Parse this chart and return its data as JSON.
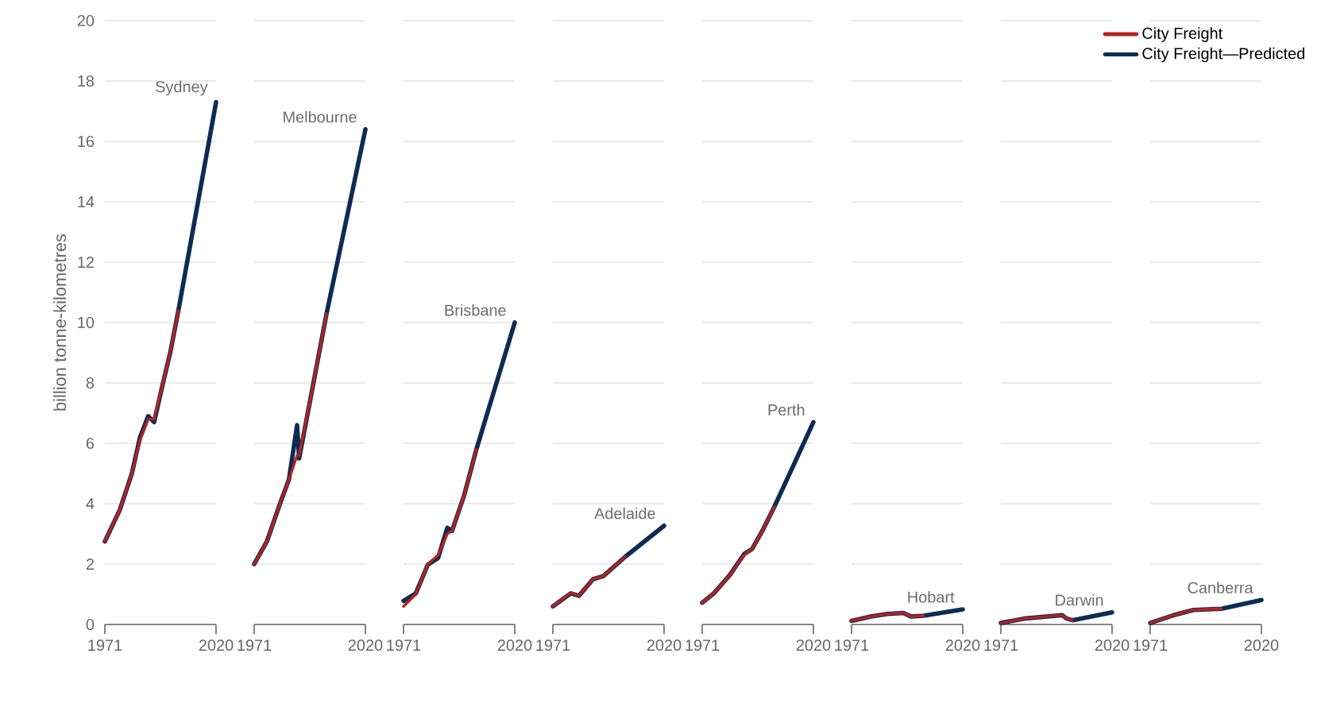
{
  "chart_data": [
    {
      "type": "line",
      "ylabel": "billion tonne-kilometres",
      "annotations": [
        "Sydney"
      ],
      "x": [
        1971,
        1977.6,
        1982.9,
        1986.5,
        1990.1,
        1992.7,
        1996.3,
        1999.8,
        2003.4,
        2020
      ],
      "series": [
        {
          "color": "#b5231e",
          "values": [
            2.75,
            3.8,
            5.0,
            6.1,
            6.8,
            6.8,
            7.9,
            9.0,
            10.4,
            null
          ]
        },
        {
          "color": "#0d2c54",
          "values": [
            2.75,
            3.8,
            5.0,
            6.2,
            6.9,
            6.7,
            7.9,
            9.0,
            10.4,
            17.3
          ]
        }
      ],
      "xlim": [
        1971,
        2020
      ],
      "xticks": [
        1971,
        2020
      ],
      "ylim": [
        0,
        20
      ],
      "yticks": [
        0,
        2,
        4,
        6,
        8,
        10,
        12,
        14,
        16,
        18,
        20
      ],
      "grid": "y",
      "line_style": "solid",
      "marker": "none"
    },
    {
      "type": "line",
      "annotations": [
        "Melbourne"
      ],
      "x": [
        1971,
        1976.6,
        1981.9,
        1986.3,
        1989.9,
        1990.8,
        1996.1,
        2002.9,
        2020
      ],
      "series": [
        {
          "color": "#b5231e",
          "values": [
            2.0,
            2.75,
            3.9,
            4.8,
            5.6,
            5.6,
            7.6,
            10.3,
            null
          ]
        },
        {
          "color": "#0d2c54",
          "values": [
            2.0,
            2.75,
            3.9,
            4.8,
            6.6,
            5.5,
            7.6,
            10.3,
            16.4
          ]
        }
      ],
      "xlim": [
        1971,
        2020
      ],
      "xticks": [
        1971,
        2020
      ],
      "ylim": [
        0,
        20
      ],
      "yticks": [
        0,
        2,
        4,
        6,
        8,
        10,
        12,
        14,
        16,
        18,
        20
      ],
      "tick_labels": "x",
      "grid": "y",
      "line_style": "solid",
      "marker": "none"
    },
    {
      "type": "line",
      "annotations": [
        "Brisbane"
      ],
      "x": [
        1971,
        1976.4,
        1981.7,
        1986.2,
        1990.3,
        1992.4,
        1997.8,
        2003.1,
        2020
      ],
      "series": [
        {
          "color": "#b5231e",
          "values": [
            0.6,
            1.0,
            2.0,
            2.3,
            3.0,
            3.1,
            4.3,
            5.8,
            null
          ]
        },
        {
          "color": "#0d2c54",
          "values": [
            0.78,
            1.03,
            1.98,
            2.2,
            3.2,
            3.1,
            4.3,
            5.8,
            10.0
          ]
        }
      ],
      "xlim": [
        1971,
        2020
      ],
      "xticks": [
        1971,
        2020
      ],
      "ylim": [
        0,
        20
      ],
      "yticks": [
        0,
        2,
        4,
        6,
        8,
        10,
        12,
        14,
        16,
        18,
        20
      ],
      "tick_labels": "x",
      "grid": "y",
      "line_style": "solid",
      "marker": "none"
    },
    {
      "type": "line",
      "annotations": [
        "Adelaide"
      ],
      "x": [
        1971,
        1978.9,
        1982.5,
        1988.7,
        1993.2,
        2003,
        2020
      ],
      "series": [
        {
          "color": "#b5231e",
          "values": [
            0.6,
            1.05,
            0.95,
            1.5,
            1.6,
            2.25,
            null
          ]
        },
        {
          "color": "#0d2c54",
          "values": [
            0.6,
            1.03,
            0.95,
            1.5,
            1.6,
            2.25,
            3.27
          ]
        }
      ],
      "xlim": [
        1971,
        2020
      ],
      "xticks": [
        1971,
        2020
      ],
      "ylim": [
        0,
        20
      ],
      "yticks": [
        0,
        2,
        4,
        6,
        8,
        10,
        12,
        14,
        16,
        18,
        20
      ],
      "tick_labels": "x",
      "grid": "y",
      "line_style": "solid",
      "marker": "none"
    },
    {
      "type": "line",
      "annotations": [
        "Perth"
      ],
      "x": [
        1971,
        1976.1,
        1983.2,
        1989.5,
        1993,
        1997.5,
        2002.8,
        2020
      ],
      "series": [
        {
          "color": "#b5231e",
          "values": [
            0.72,
            1.03,
            1.64,
            2.3,
            2.5,
            3.1,
            3.9,
            null
          ]
        },
        {
          "color": "#0d2c54",
          "values": [
            0.72,
            1.03,
            1.64,
            2.33,
            2.5,
            3.1,
            3.9,
            6.7
          ]
        }
      ],
      "xlim": [
        1971,
        2020
      ],
      "xticks": [
        1971,
        2020
      ],
      "ylim": [
        0,
        20
      ],
      "yticks": [
        0,
        2,
        4,
        6,
        8,
        10,
        12,
        14,
        16,
        18,
        20
      ],
      "tick_labels": "x",
      "grid": "y",
      "line_style": "solid",
      "marker": "none"
    },
    {
      "type": "line",
      "annotations": [
        "Hobart"
      ],
      "x": [
        1971,
        1979.5,
        1986.6,
        1993.8,
        1997.3,
        2002.7,
        2020
      ],
      "series": [
        {
          "color": "#b5231e",
          "values": [
            0.12,
            0.26,
            0.35,
            0.38,
            0.26,
            0.29,
            null
          ]
        },
        {
          "color": "#0d2c54",
          "values": [
            0.12,
            0.26,
            0.35,
            0.38,
            0.26,
            0.29,
            0.5
          ]
        }
      ],
      "xlim": [
        1971,
        2020
      ],
      "xticks": [
        1971,
        2020
      ],
      "ylim": [
        0,
        20
      ],
      "yticks": [
        0,
        2,
        4,
        6,
        8,
        10,
        12,
        14,
        16,
        18,
        20
      ],
      "tick_labels": "x",
      "grid": "y",
      "line_style": "solid",
      "marker": "none"
    },
    {
      "type": "line",
      "annotations": [
        "Darwin"
      ],
      "x": [
        1971,
        1982,
        1998,
        1999.9,
        2002.5,
        2020
      ],
      "series": [
        {
          "color": "#b5231e",
          "values": [
            0.05,
            0.2,
            0.31,
            0.2,
            0.14,
            null
          ]
        },
        {
          "color": "#0d2c54",
          "values": [
            0.05,
            0.2,
            0.31,
            0.2,
            0.14,
            0.4
          ]
        }
      ],
      "xlim": [
        1971,
        2020
      ],
      "xticks": [
        1971,
        2020
      ],
      "ylim": [
        0,
        20
      ],
      "yticks": [
        0,
        2,
        4,
        6,
        8,
        10,
        12,
        14,
        16,
        18,
        20
      ],
      "tick_labels": "x",
      "grid": "y",
      "line_style": "solid",
      "marker": "none"
    },
    {
      "type": "line",
      "annotations": [
        "Canberra"
      ],
      "x": [
        1971,
        1981,
        1990,
        2002.4,
        2020
      ],
      "series": [
        {
          "name": "City Freight",
          "color": "#b5231e",
          "values": [
            0.05,
            0.3,
            0.48,
            0.52,
            null
          ]
        },
        {
          "name": "City Freight—Predicted",
          "color": "#0d2c54",
          "values": [
            0.05,
            0.3,
            0.48,
            0.52,
            0.81
          ]
        }
      ],
      "xlim": [
        1971,
        2020
      ],
      "xticks": [
        1971,
        2020
      ],
      "ylim": [
        0,
        20
      ],
      "yticks": [
        0,
        2,
        4,
        6,
        8,
        10,
        12,
        14,
        16,
        18,
        20
      ],
      "tick_labels": "x",
      "grid": "y",
      "legend": "top",
      "line_style": "solid",
      "marker": "none"
    }
  ]
}
